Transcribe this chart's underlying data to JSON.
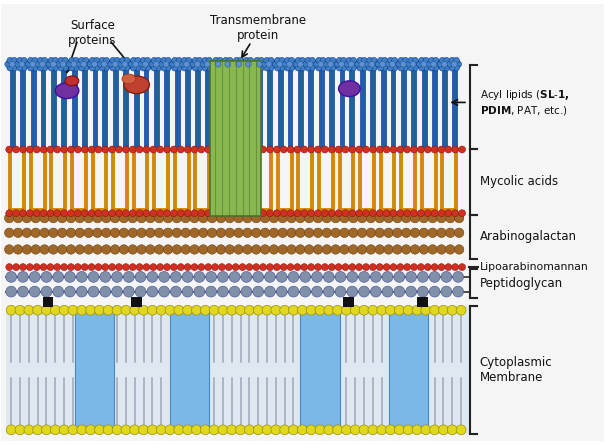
{
  "title": "",
  "bg_color": "#ffffff",
  "labels": {
    "surface_proteins": "Surface\nproteins",
    "transmembrane_protein": "Transmembrane\nprotein",
    "acyl_lipids": "Acyl lipids (SL-1,\nPDIM, PAT, etc.)",
    "mycolic_acids": "Mycolic acids",
    "arabinogalactan": "Arabinogalactan",
    "lipoarabinomannan": "Lipoarabinomannan",
    "peptidoglycan": "Peptidoglycan",
    "cytoplasmic_membrane": "Cytoplasmic\nMembrane"
  },
  "colors": {
    "blue_rods": "#2060a0",
    "orange_anchors": "#d4880a",
    "red_beads": "#d03020",
    "brown_beads": "#9a6020",
    "gray_beads": "#8090a8",
    "yellow_spheres": "#e8e030",
    "light_blue_rect": "#7ab0e0",
    "green_rect": "#88b050",
    "purple_protein": "#7030a0",
    "black_square": "#111111",
    "background": "#f8f8f8",
    "bracket_color": "#222222",
    "text_color": "#111111",
    "arrow_color": "#111111"
  },
  "fig_width": 6.15,
  "fig_height": 4.45,
  "dpi": 100
}
